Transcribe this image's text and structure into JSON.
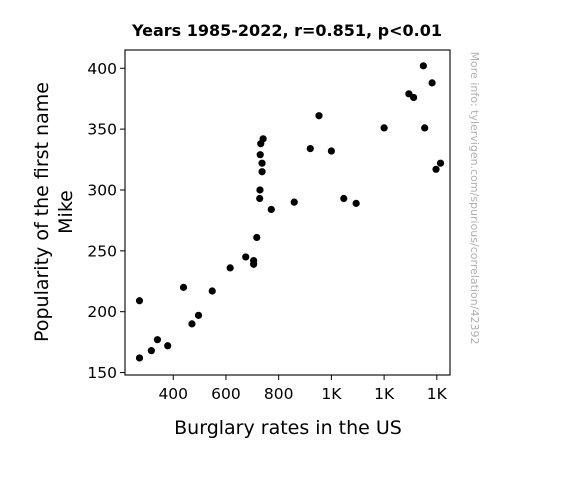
{
  "chart_data": {
    "type": "scatter",
    "title": "Years 1985-2022, r=0.851, p<0.01",
    "xlabel": "Burglary rates in the US",
    "ylabel_lines": [
      "Popularity of the first name",
      "Mike"
    ],
    "side_note": "More info: tylervigen.com/spurious/correlation/42392",
    "xlim": [
      217,
      1450
    ],
    "ylim": [
      148,
      415
    ],
    "xticks": [
      {
        "value": 400,
        "label": "400"
      },
      {
        "value": 600,
        "label": "600"
      },
      {
        "value": 800,
        "label": "800"
      },
      {
        "value": 1000,
        "label": "1K"
      },
      {
        "value": 1200,
        "label": "1K"
      },
      {
        "value": 1400,
        "label": "1K"
      }
    ],
    "yticks": [
      {
        "value": 150,
        "label": "150"
      },
      {
        "value": 200,
        "label": "200"
      },
      {
        "value": 250,
        "label": "250"
      },
      {
        "value": 300,
        "label": "300"
      },
      {
        "value": 350,
        "label": "350"
      },
      {
        "value": 400,
        "label": "400"
      }
    ],
    "grid": false,
    "marker_color": "#000000",
    "points": [
      {
        "x": 1349,
        "y": 402
      },
      {
        "x": 1382,
        "y": 388
      },
      {
        "x": 1294,
        "y": 379
      },
      {
        "x": 1312,
        "y": 376
      },
      {
        "x": 953,
        "y": 361
      },
      {
        "x": 741,
        "y": 342
      },
      {
        "x": 1200,
        "y": 351
      },
      {
        "x": 1354,
        "y": 351
      },
      {
        "x": 732,
        "y": 338
      },
      {
        "x": 920,
        "y": 334
      },
      {
        "x": 1000,
        "y": 332
      },
      {
        "x": 730,
        "y": 329
      },
      {
        "x": 737,
        "y": 322
      },
      {
        "x": 1414,
        "y": 322
      },
      {
        "x": 1397,
        "y": 317
      },
      {
        "x": 737,
        "y": 315
      },
      {
        "x": 729,
        "y": 300
      },
      {
        "x": 1047,
        "y": 293
      },
      {
        "x": 728,
        "y": 293
      },
      {
        "x": 1094,
        "y": 289
      },
      {
        "x": 859,
        "y": 290
      },
      {
        "x": 772,
        "y": 284
      },
      {
        "x": 717,
        "y": 261
      },
      {
        "x": 675,
        "y": 245
      },
      {
        "x": 705,
        "y": 242
      },
      {
        "x": 705,
        "y": 239
      },
      {
        "x": 616,
        "y": 236
      },
      {
        "x": 439,
        "y": 220
      },
      {
        "x": 548,
        "y": 217
      },
      {
        "x": 496,
        "y": 197
      },
      {
        "x": 471,
        "y": 190
      },
      {
        "x": 272,
        "y": 209
      },
      {
        "x": 340,
        "y": 177
      },
      {
        "x": 379,
        "y": 172
      },
      {
        "x": 317,
        "y": 168
      },
      {
        "x": 272,
        "y": 162
      }
    ]
  }
}
